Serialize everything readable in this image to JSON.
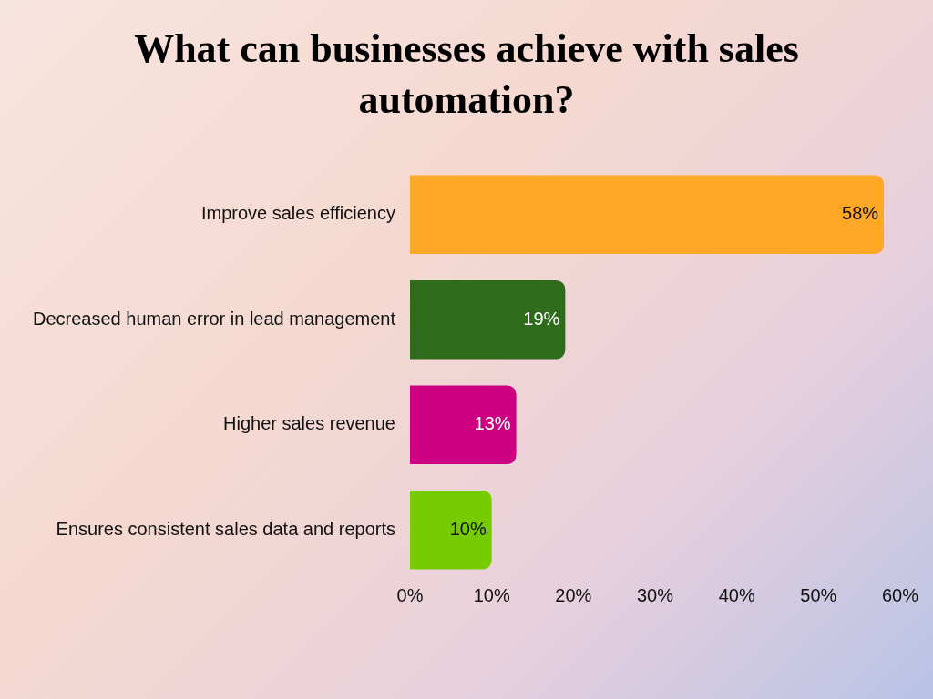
{
  "chart_data": {
    "type": "bar",
    "orientation": "horizontal",
    "title": "What can businesses achieve with sales automation?",
    "categories": [
      "Improve sales efficiency",
      "Decreased human error in lead management",
      "Higher sales revenue",
      "Ensures consistent sales data and reports"
    ],
    "values": [
      58,
      19,
      13,
      10
    ],
    "colors": [
      "#ffa726",
      "#2e6b1a",
      "#cc0080",
      "#76cc00"
    ],
    "value_labels": [
      "58%",
      "19%",
      "13%",
      "10%"
    ],
    "xlim": [
      0,
      60
    ],
    "xticks": [
      {
        "value": 0,
        "label": "0%"
      },
      {
        "value": 10,
        "label": "10%"
      },
      {
        "value": 20,
        "label": "20%"
      },
      {
        "value": 30,
        "label": "30%"
      },
      {
        "value": 40,
        "label": "40%"
      },
      {
        "value": 50,
        "label": "50%"
      },
      {
        "value": 60,
        "label": "60%"
      }
    ],
    "grid": false,
    "legend": false
  }
}
